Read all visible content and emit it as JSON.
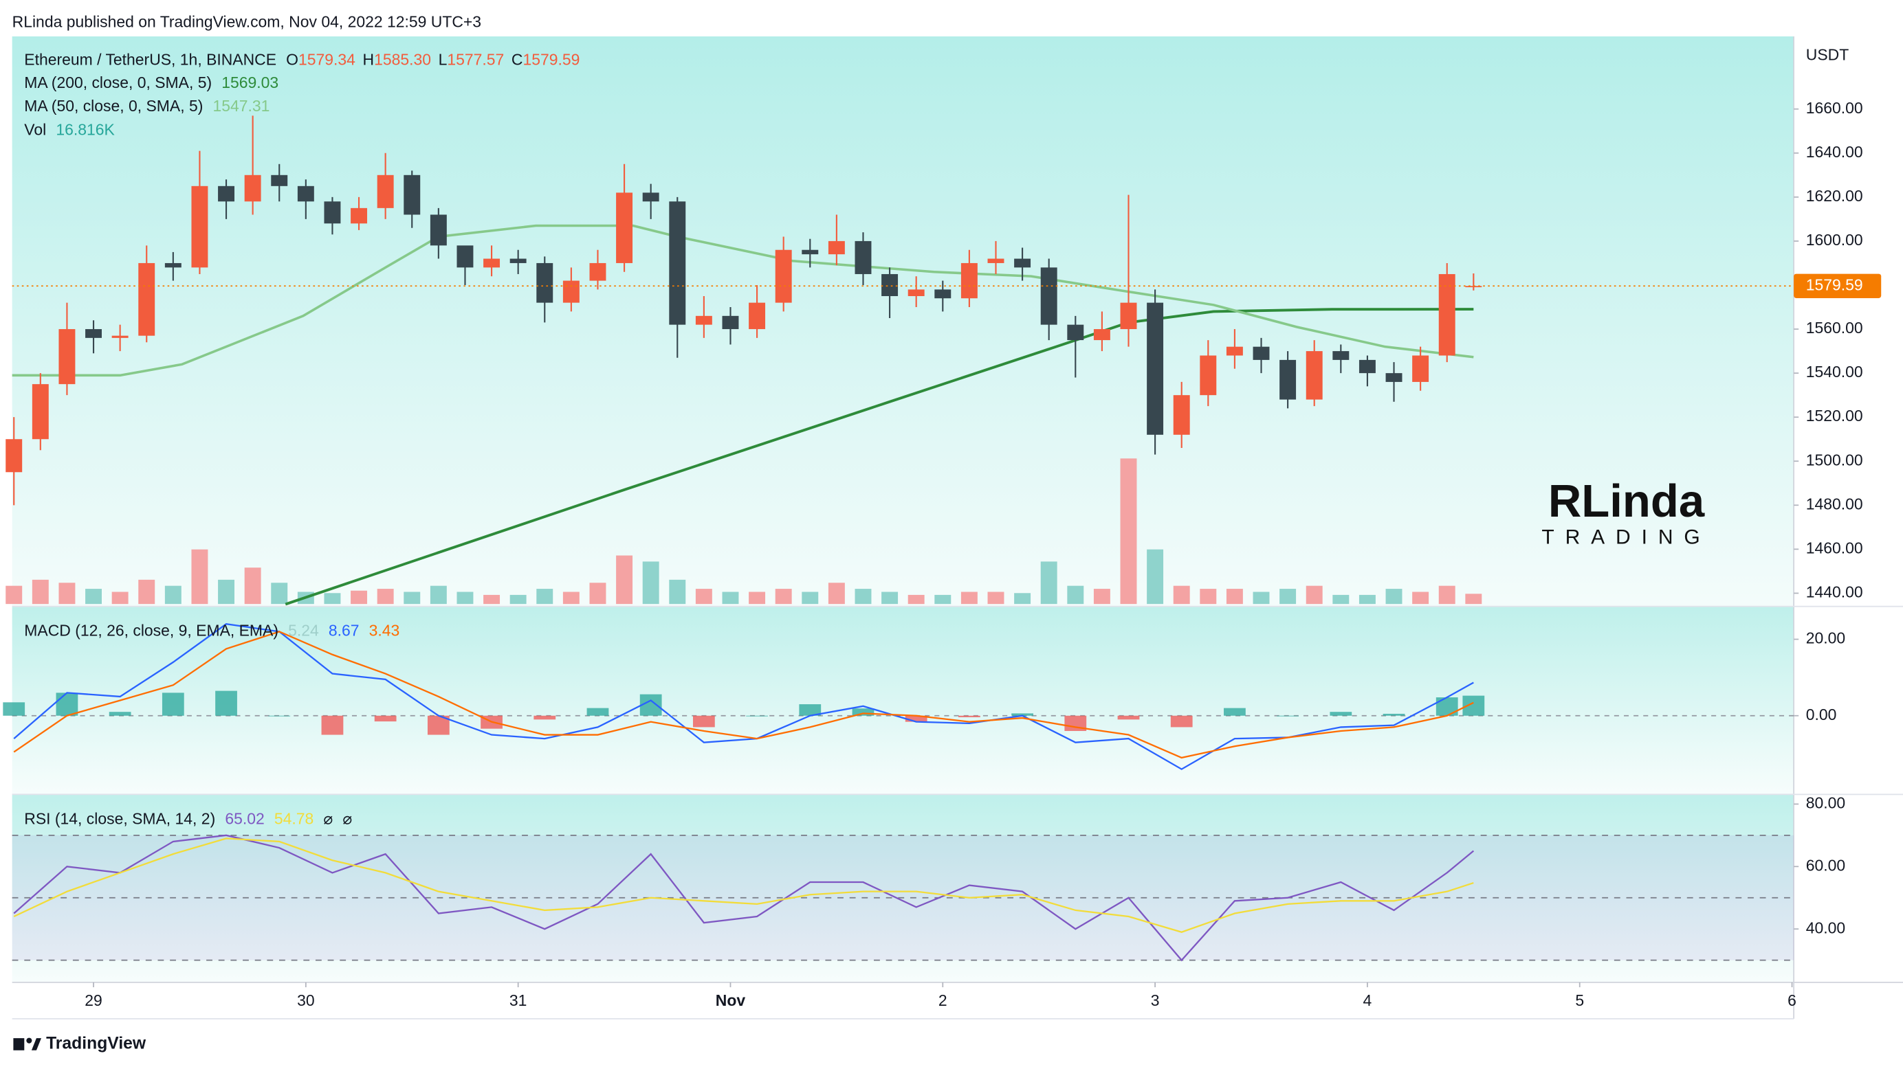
{
  "header": {
    "publisher": "RLinda published on TradingView.com, Nov 04, 2022 12:59 UTC+3"
  },
  "footer": {
    "brand": "TradingView"
  },
  "watermark": {
    "line1": "RLinda",
    "line2": "TRADING"
  },
  "chart_data": [
    {
      "type": "candlestick",
      "title": "Ethereum / TetherUS, 1h, BINANCE",
      "unit": "USDT",
      "ohlc_legend": [
        {
          "key": "O",
          "label": "1579.34"
        },
        {
          "key": "H",
          "label": "1585.30"
        },
        {
          "key": "L",
          "label": "1577.57"
        },
        {
          "key": "C",
          "label": "1579.59"
        }
      ],
      "up_color": "#f25c3d",
      "down_color": "#37474f",
      "last_price_color": "#f57c00",
      "x": [
        -9,
        -6,
        -3,
        0,
        3,
        6,
        9,
        12,
        15,
        18,
        21,
        24,
        27,
        30,
        33,
        36,
        39,
        42,
        45,
        48,
        51,
        54,
        57,
        60,
        63,
        66,
        69,
        72,
        75,
        78,
        81,
        84,
        87,
        90,
        93,
        96,
        99,
        102,
        105,
        108,
        111,
        114,
        117,
        120,
        123,
        126,
        129,
        132,
        135,
        138,
        141,
        144,
        147,
        150,
        153,
        156
      ],
      "open": [
        1495,
        1510,
        1535,
        1560,
        1556,
        1557,
        1590,
        1588,
        1625,
        1618,
        1630,
        1625,
        1618,
        1608,
        1615,
        1630,
        1612,
        1598,
        1588,
        1592,
        1590,
        1572,
        1582,
        1590,
        1622,
        1618,
        1562,
        1566,
        1560,
        1572,
        1596,
        1594,
        1600,
        1585,
        1575,
        1578,
        1574,
        1590,
        1592,
        1588,
        1562,
        1555,
        1560,
        1572,
        1512,
        1530,
        1548,
        1552,
        1546,
        1528,
        1550,
        1546,
        1540,
        1536,
        1548,
        1579.34
      ],
      "high": [
        1520,
        1540,
        1572,
        1564,
        1562,
        1598,
        1595,
        1641,
        1628,
        1657,
        1635,
        1628,
        1620,
        1620,
        1640,
        1632,
        1615,
        1596,
        1598,
        1596,
        1593,
        1588,
        1596,
        1635,
        1626,
        1620,
        1575,
        1570,
        1580,
        1602,
        1601,
        1612,
        1604,
        1588,
        1584,
        1582,
        1596,
        1600,
        1597,
        1592,
        1566,
        1568,
        1621,
        1578,
        1536,
        1555,
        1560,
        1556,
        1550,
        1555,
        1553,
        1548,
        1545,
        1552,
        1590,
        1585.3
      ],
      "low": [
        1480,
        1505,
        1530,
        1549,
        1550,
        1554,
        1582,
        1585,
        1610,
        1612,
        1618,
        1610,
        1603,
        1605,
        1610,
        1606,
        1592,
        1580,
        1584,
        1585,
        1563,
        1568,
        1578,
        1586,
        1610,
        1547,
        1556,
        1553,
        1556,
        1568,
        1588,
        1589,
        1580,
        1565,
        1570,
        1568,
        1570,
        1585,
        1582,
        1555,
        1538,
        1550,
        1552,
        1503,
        1506,
        1525,
        1542,
        1540,
        1524,
        1525,
        1540,
        1534,
        1527,
        1532,
        1545,
        1577.57
      ],
      "close": [
        1510,
        1535,
        1560,
        1556,
        1557,
        1590,
        1588,
        1625,
        1618,
        1630,
        1625,
        1618,
        1608,
        1615,
        1630,
        1612,
        1598,
        1588,
        1592,
        1590,
        1572,
        1582,
        1590,
        1622,
        1618,
        1562,
        1566,
        1560,
        1572,
        1596,
        1594,
        1600,
        1585,
        1575,
        1578,
        1574,
        1590,
        1592,
        1588,
        1562,
        1555,
        1560,
        1572,
        1512,
        1530,
        1548,
        1552,
        1546,
        1528,
        1550,
        1546,
        1540,
        1536,
        1548,
        1585,
        1579.59
      ],
      "volume": {
        "name": "Vol",
        "value_label": "16.816K",
        "color": "#26a69a",
        "up_color": "#f4a3a3",
        "down_color": "#8fd3cc",
        "values": [
          30,
          40,
          35,
          25,
          20,
          40,
          30,
          90,
          40,
          60,
          35,
          20,
          18,
          22,
          25,
          20,
          30,
          20,
          15,
          15,
          25,
          20,
          35,
          80,
          70,
          40,
          25,
          20,
          20,
          25,
          20,
          35,
          25,
          20,
          15,
          15,
          20,
          20,
          18,
          70,
          30,
          25,
          240,
          90,
          30,
          25,
          25,
          20,
          25,
          30,
          15,
          15,
          25,
          20,
          30,
          16.816
        ]
      },
      "series": [
        {
          "name": "MA (200, close, 0, SMA, 5)",
          "color": "#2e8b3a",
          "x": [
            21.7,
            60,
            90,
            108.8,
            117,
            126.6,
            140,
            156
          ],
          "values": [
            1435,
            1487,
            1527,
            1552,
            1563,
            1568,
            1569,
            1569.03
          ]
        },
        {
          "name": "MA (50, close, 0, SMA, 5)",
          "color": "#86c98a",
          "x": [
            -9.2,
            3,
            10,
            23.7,
            33,
            39,
            50,
            61,
            66,
            79,
            95,
            106,
            117,
            126.6,
            136,
            146,
            156
          ],
          "values": [
            1539,
            1539,
            1544,
            1566,
            1588,
            1602,
            1607,
            1607,
            1602,
            1591,
            1586,
            1584,
            1577,
            1571,
            1561,
            1552,
            1547.31
          ]
        }
      ],
      "xlim": [
        -9.2,
        192.2
      ],
      "xticks": [
        {
          "value": 0,
          "label": "29"
        },
        {
          "value": 24,
          "label": "30"
        },
        {
          "value": 48,
          "label": "31"
        },
        {
          "value": 72,
          "label": "Nov"
        },
        {
          "value": 96,
          "label": "2"
        },
        {
          "value": 120,
          "label": "3"
        },
        {
          "value": 144,
          "label": "4"
        },
        {
          "value": 168,
          "label": "5"
        },
        {
          "value": 192,
          "label": "6"
        }
      ],
      "ylim": [
        1434,
        1693
      ],
      "yticks": [
        {
          "value": 1440,
          "label": "1440.00"
        },
        {
          "value": 1460,
          "label": "1460.00"
        },
        {
          "value": 1480,
          "label": "1480.00"
        },
        {
          "value": 1500,
          "label": "1500.00"
        },
        {
          "value": 1520,
          "label": "1520.00"
        },
        {
          "value": 1540,
          "label": "1540.00"
        },
        {
          "value": 1560,
          "label": "1560.00"
        },
        {
          "value": 1580,
          "label": "1580.00"
        },
        {
          "value": 1600,
          "label": "1600.00"
        },
        {
          "value": 1620,
          "label": "1620.00"
        },
        {
          "value": 1640,
          "label": "1640.00"
        },
        {
          "value": 1660,
          "label": "1660.00"
        }
      ],
      "grid": false
    },
    {
      "type": "macd",
      "title": "MACD (12, 26, close, 9, EMA, EMA)",
      "x": [
        -9,
        -3,
        3,
        9,
        15,
        21,
        27,
        33,
        39,
        45,
        51,
        57,
        63,
        69,
        75,
        81,
        87,
        93,
        99,
        105,
        111,
        117,
        123,
        129,
        135,
        141,
        147,
        153,
        156
      ],
      "histogram": {
        "up_color": "#26a69a",
        "down_color": "#ef5350",
        "legend_color": "#9fcfca",
        "values": [
          3.5,
          6,
          1,
          6,
          6.5,
          0,
          -5,
          -1.5,
          -5,
          -3.4,
          -1,
          2,
          5.6,
          -3,
          0,
          3,
          1.9,
          -1.6,
          -0.4,
          0.6,
          -4,
          -1,
          -3,
          2,
          0,
          1,
          0.5,
          4.8,
          5.24
        ]
      },
      "series": [
        {
          "color": "#2962ff",
          "values": [
            -6,
            6,
            5,
            14,
            24,
            22,
            11,
            9.5,
            0,
            -5,
            -6,
            -3,
            4,
            -7,
            -6,
            0,
            2.5,
            -1.6,
            -2,
            0,
            -7,
            -6,
            -14,
            -6,
            -5.7,
            -3,
            -2.5,
            4.8,
            8.67
          ]
        },
        {
          "color": "#ff6d00",
          "values": [
            -9.5,
            0,
            4,
            8,
            17.5,
            22,
            16,
            11,
            5,
            -1.6,
            -5,
            -5,
            -1.6,
            -4,
            -6,
            -3,
            0.6,
            0,
            -1.6,
            -0.6,
            -3,
            -5,
            -11,
            -8,
            -5.7,
            -4,
            -3,
            0,
            3.43
          ]
        }
      ],
      "ylim": [
        -20.6,
        28.6
      ],
      "yticks": [
        {
          "value": 0,
          "label": "0.00"
        },
        {
          "value": 20,
          "label": "20.00"
        }
      ],
      "zero_line": true
    },
    {
      "type": "rsi",
      "title": "RSI (14, close, SMA, 14, 2)",
      "extra_labels": [
        "⌀",
        "⌀"
      ],
      "x": [
        -9,
        -3,
        3,
        9,
        15,
        21,
        27,
        33,
        39,
        45,
        51,
        57,
        63,
        69,
        75,
        81,
        87,
        93,
        99,
        105,
        111,
        117,
        123,
        129,
        135,
        141,
        147,
        153,
        156
      ],
      "series": [
        {
          "color": "#7e57c2",
          "values": [
            45,
            60,
            58,
            68,
            70,
            66,
            58,
            64,
            45,
            47,
            40,
            48,
            64,
            42,
            44,
            55,
            55,
            47,
            54,
            52,
            40,
            50,
            30,
            49,
            50,
            55,
            46,
            58,
            65.02
          ]
        },
        {
          "color": "#f2dc3a",
          "values": [
            44,
            52,
            58,
            64,
            69,
            68,
            62,
            58,
            52,
            49,
            46,
            47,
            50,
            49,
            48,
            51,
            52,
            52,
            50,
            51,
            46,
            44,
            39,
            45,
            48,
            49,
            49,
            52,
            54.78
          ]
        }
      ],
      "levels": [
        30,
        50,
        70
      ],
      "band_color": "#7e57c2",
      "ylim": [
        22.9,
        83.1
      ],
      "yticks": [
        {
          "value": 40,
          "label": "40.00"
        },
        {
          "value": 60,
          "label": "60.00"
        },
        {
          "value": 80,
          "label": "80.00"
        }
      ]
    }
  ]
}
